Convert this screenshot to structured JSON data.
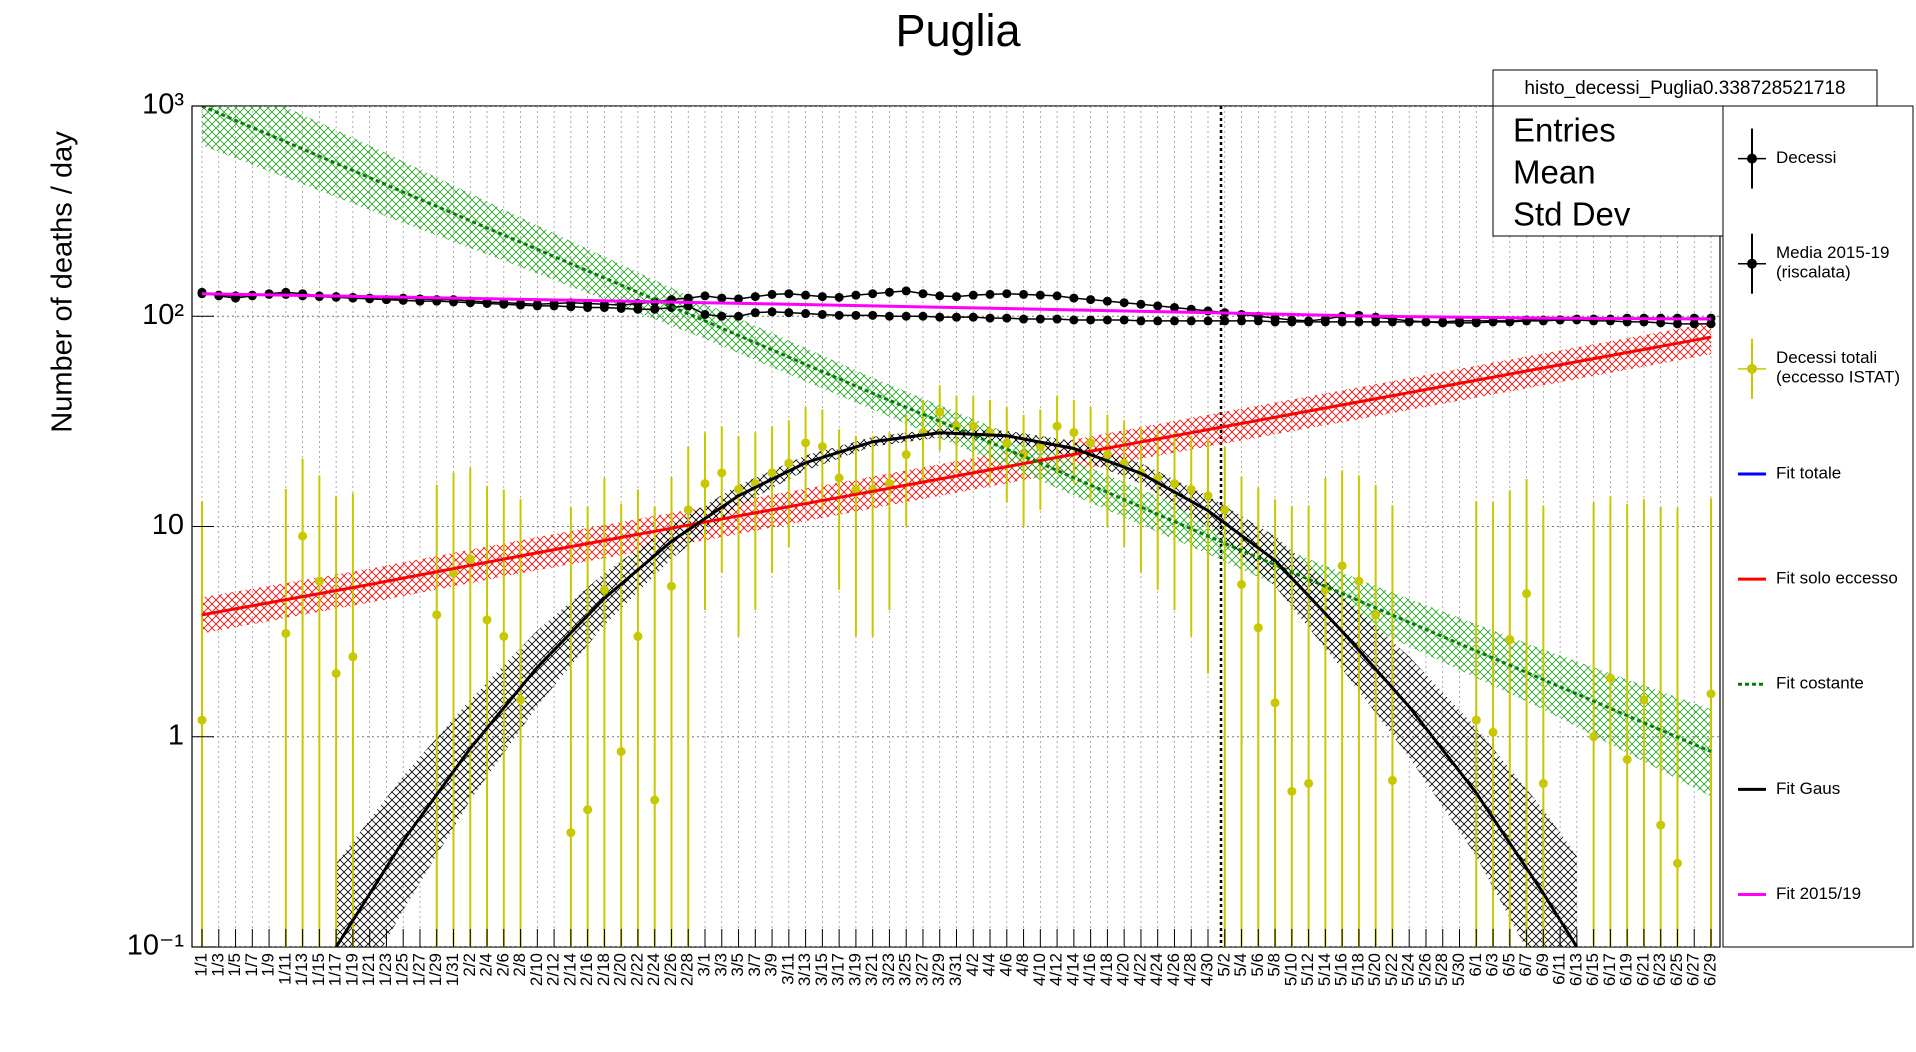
{
  "chart_data": {
    "type": "line",
    "title": "Puglia",
    "y_label": "Number of deaths / day",
    "log_y": true,
    "grid": true,
    "ylim": [
      0.1,
      1000
    ],
    "yticks": [
      {
        "value": 1000,
        "label": "10³"
      },
      {
        "value": 100,
        "label": "10²"
      },
      10,
      1,
      {
        "value": 0.1,
        "label": "10⁻¹"
      }
    ],
    "categories": [
      "1/1",
      "1/3",
      "1/5",
      "1/7",
      "1/9",
      "1/11",
      "1/13",
      "1/15",
      "1/17",
      "1/19",
      "1/21",
      "1/23",
      "1/25",
      "1/27",
      "1/29",
      "1/31",
      "2/2",
      "2/4",
      "2/6",
      "2/8",
      "2/10",
      "2/12",
      "2/14",
      "2/16",
      "2/18",
      "2/20",
      "2/22",
      "2/24",
      "2/26",
      "2/28",
      "3/1",
      "3/3",
      "3/5",
      "3/7",
      "3/9",
      "3/11",
      "3/13",
      "3/15",
      "3/17",
      "3/19",
      "3/21",
      "3/23",
      "3/25",
      "3/27",
      "3/29",
      "3/31",
      "4/2",
      "4/4",
      "4/6",
      "4/8",
      "4/10",
      "4/12",
      "4/14",
      "4/16",
      "4/18",
      "4/20",
      "4/22",
      "4/24",
      "4/26",
      "4/28",
      "4/30",
      "5/2",
      "5/4",
      "5/6",
      "5/8",
      "5/10",
      "5/12",
      "5/14",
      "5/16",
      "5/18",
      "5/20",
      "5/22",
      "5/24",
      "5/26",
      "5/28",
      "5/30",
      "6/1",
      "6/3",
      "6/5",
      "6/7",
      "6/9",
      "6/11",
      "6/13",
      "6/15",
      "6/17",
      "6/19",
      "6/21",
      "6/23",
      "6/25",
      "6/27",
      "6/29"
    ],
    "series": [
      {
        "name": "Decessi",
        "color": "#000000",
        "values": [
          130,
          125,
          122,
          125,
          128,
          130,
          128,
          125,
          124,
          123,
          122,
          120,
          122,
          121,
          120,
          120,
          118,
          117,
          116,
          115,
          114,
          115,
          116,
          115,
          114,
          113,
          115,
          117,
          120,
          122,
          125,
          122,
          121,
          124,
          127,
          128,
          126,
          124,
          123,
          126,
          128,
          130,
          132,
          128,
          125,
          124,
          126,
          127,
          128,
          127,
          126,
          125,
          122,
          120,
          118,
          116,
          114,
          112,
          110,
          108,
          106,
          104,
          102,
          100,
          98,
          96,
          95,
          97,
          100,
          101,
          99,
          97,
          95,
          94,
          93,
          93,
          93,
          94,
          94,
          95,
          95,
          96,
          96,
          95,
          95,
          94,
          94,
          93,
          92,
          92,
          92
        ]
      },
      {
        "name": "Media 2015-19\n(riscalata)",
        "color": "#000000",
        "values": [
          128,
          126,
          125,
          126,
          127,
          127,
          125,
          124,
          123,
          122,
          121,
          120,
          119,
          118,
          118,
          117,
          116,
          115,
          114,
          113,
          112,
          112,
          111,
          110,
          110,
          109,
          108,
          108,
          110,
          112,
          102,
          100,
          100,
          104,
          105,
          104,
          103,
          102,
          101,
          101,
          101,
          100,
          100,
          100,
          99,
          99,
          99,
          98,
          98,
          97,
          97,
          97,
          96,
          96,
          96,
          96,
          95,
          95,
          95,
          95,
          95,
          95,
          95,
          95,
          94,
          94,
          94,
          94,
          94,
          94,
          94,
          94,
          94,
          94,
          94,
          95,
          95,
          95,
          95,
          96,
          96,
          96,
          97,
          97,
          97,
          98,
          98,
          98,
          98,
          98,
          98
        ]
      },
      {
        "name": "Decessi totali\n(eccesso ISTAT)",
        "color": "#c8c800",
        "values": [
          1.2,
          null,
          null,
          null,
          null,
          3.1,
          9,
          5.5,
          2,
          2.4,
          null,
          null,
          null,
          null,
          3.8,
          6,
          7,
          3.6,
          3,
          1.5,
          null,
          null,
          0.35,
          0.45,
          5,
          0.85,
          3,
          0.5,
          5.2,
          12,
          16,
          18,
          15,
          16,
          18,
          20,
          25,
          24,
          17,
          15,
          15,
          16,
          22,
          28,
          35,
          30,
          30,
          28,
          25,
          22,
          24,
          30,
          28,
          25,
          22,
          20,
          18,
          17,
          16,
          15,
          14,
          12,
          5.3,
          3.3,
          1.45,
          0.55,
          0.6,
          5,
          6.5,
          5.5,
          3.8,
          0.62,
          null,
          null,
          null,
          null,
          1.2,
          1.05,
          2.9,
          4.8,
          0.6,
          null,
          null,
          1,
          1.9,
          0.78,
          1.5,
          0.38,
          0.25,
          null,
          1.6
        ],
        "errors": [
          12,
          null,
          null,
          null,
          null,
          12,
          12,
          12,
          12,
          12,
          null,
          null,
          null,
          null,
          12,
          12,
          12,
          12,
          12,
          12,
          null,
          null,
          12,
          12,
          12,
          12,
          12,
          12,
          12,
          12,
          12,
          12,
          12,
          12,
          12,
          12,
          12,
          12,
          12,
          12,
          12,
          12,
          12,
          12,
          12,
          12,
          12,
          12,
          12,
          12,
          12,
          12,
          12,
          12,
          12,
          12,
          12,
          12,
          12,
          12,
          12,
          12,
          12,
          12,
          12,
          12,
          12,
          12,
          12,
          12,
          12,
          12,
          null,
          null,
          null,
          null,
          12,
          12,
          12,
          12,
          12,
          null,
          null,
          12,
          12,
          12,
          12,
          12,
          12,
          null,
          12
        ]
      }
    ],
    "fits": [
      {
        "name": "Fit totale",
        "color": "#0000ff"
      },
      {
        "name": "Fit solo eccesso",
        "color": "#ff0000",
        "x": [
          "1/1",
          "1/21",
          "2/10",
          "3/1",
          "3/21",
          "4/10",
          "4/30",
          "5/20",
          "6/9",
          "6/29"
        ],
        "values": [
          3.8,
          5.3,
          7.5,
          10.5,
          14.7,
          20.6,
          28.9,
          40.5,
          56.8,
          79.6
        ],
        "lower": [
          3.1,
          4.35,
          6.2,
          8.6,
          12.2,
          17.2,
          24,
          33.5,
          47,
          66
        ],
        "upper": [
          4.6,
          6.3,
          8.9,
          12.4,
          17.3,
          24.2,
          34,
          47.5,
          66.5,
          93
        ]
      },
      {
        "name": "Fit costante",
        "color": "#008000",
        "dashed": true,
        "x": [
          "1/1",
          "1/21",
          "2/10",
          "3/1",
          "3/21",
          "4/10",
          "4/30",
          "5/20",
          "6/9",
          "6/29"
        ],
        "values": [
          1000,
          456,
          208,
          95,
          43,
          20,
          9,
          4.1,
          1.87,
          0.85
        ],
        "lower": [
          650,
          320,
          160,
          78,
          36,
          16.5,
          7.4,
          3.2,
          1.35,
          0.52
        ],
        "upper": [
          1500,
          650,
          270,
          115,
          51,
          24,
          11,
          5.2,
          2.6,
          1.35
        ]
      },
      {
        "name": "Fit Gaus",
        "color": "#000000",
        "x": [
          "1/17",
          "1/25",
          "2/2",
          "2/10",
          "2/18",
          "2/26",
          "3/5",
          "3/13",
          "3/21",
          "3/29",
          "4/6",
          "4/14",
          "4/22",
          "4/30",
          "5/8",
          "5/16",
          "5/24",
          "6/1",
          "6/9",
          "6/13"
        ],
        "values": [
          0.1,
          0.32,
          0.88,
          2.14,
          4.56,
          8.5,
          14,
          20.1,
          25.3,
          27.9,
          27,
          23.5,
          17.9,
          11.9,
          6.9,
          3.17,
          1.39,
          0.54,
          0.18,
          0.1
        ],
        "lower": [
          0.04,
          0.15,
          0.5,
          1.4,
          3.4,
          7,
          12.5,
          18.5,
          24,
          26.5,
          25.5,
          21.5,
          16,
          10,
          5.2,
          2.1,
          0.8,
          0.27,
          0.07,
          0.04
        ],
        "upper": [
          0.25,
          0.65,
          1.5,
          3.2,
          6,
          10.2,
          15.7,
          21.8,
          26.7,
          29.3,
          28.5,
          25.5,
          20,
          14,
          9,
          4.7,
          2.4,
          1.1,
          0.45,
          0.27
        ]
      },
      {
        "name": "Fit 2015/19",
        "color": "#ff00ff",
        "x": [
          "1/1",
          "1/21",
          "2/10",
          "3/1",
          "3/21",
          "4/10",
          "4/30",
          "5/20",
          "6/9",
          "6/29"
        ],
        "values": [
          128,
          124,
          120,
          116,
          112,
          108,
          104,
          100,
          98,
          97
        ]
      }
    ],
    "stats": {
      "title": "histo_decessi_Puglia0.338728521718",
      "labels": [
        "Entries",
        "Mean",
        "Std Dev"
      ]
    }
  }
}
